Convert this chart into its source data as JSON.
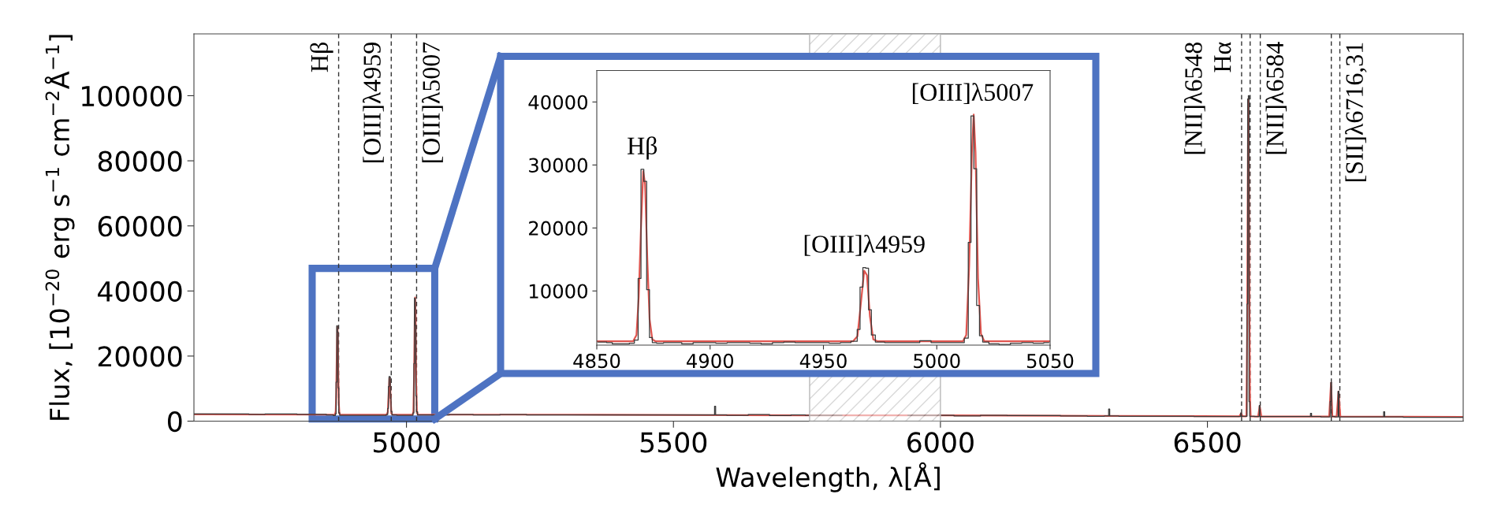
{
  "chart_data": [
    {
      "type": "line",
      "xlabel": "Wavelength, λ[Å]",
      "ylabel": "Flux, [10$^{−20}$ erg s$^{−1}$ cm$^{−2}$Å$^{−1}$]",
      "xlim": [
        4602,
        6979
      ],
      "ylim": [
        0,
        119000
      ],
      "xticks": [
        5000,
        5500,
        6000,
        6500
      ],
      "yticks": [
        0,
        20000,
        40000,
        60000,
        80000,
        100000
      ],
      "series": [
        {
          "type": "step",
          "color": "#3a3a3a",
          "x": [
            4602,
            4630,
            4660,
            4690,
            4720,
            4750,
            4780,
            4810,
            4840,
            4860,
            4866,
            4867.6,
            4868.9,
            4870.1,
            4871.4,
            4872.6,
            4873.9,
            4876,
            4900,
            4930,
            4960,
            4964.3,
            4965.5,
            4966.8,
            4968.0,
            4969.3,
            4970.5,
            4971.8,
            4974,
            4990,
            5011,
            5013.3,
            5014.5,
            5015.7,
            5017.0,
            5018.2,
            5019.5,
            5022,
            5060,
            5100,
            5150,
            5200,
            5250,
            5300,
            5350,
            5400,
            5450,
            5500,
            5550,
            5576,
            5578,
            5580,
            5620,
            5660,
            5700,
            5740,
            5754,
            5877,
            6001,
            6050,
            6100,
            6150,
            6200,
            6250,
            6300,
            6314,
            6316,
            6318,
            6350,
            6400,
            6450,
            6500,
            6540,
            6561.5,
            6563,
            6564.5,
            6573.5,
            6574.8,
            6576.0,
            6577.3,
            6578.5,
            6579.8,
            6596.5,
            6597.8,
            6599,
            6650,
            6692,
            6694,
            6696,
            6729,
            6730.5,
            6731.8,
            6733,
            6744,
            6745.5,
            6747,
            6790,
            6829,
            6831,
            6833,
            6900,
            6979
          ],
          "values": [
            2200,
            2200,
            2200,
            2200,
            2100,
            2200,
            2200,
            2100,
            2100,
            1900,
            1700,
            2200,
            12000,
            29300,
            27400,
            10200,
            2600,
            1800,
            1800,
            1800,
            1800,
            2000,
            3900,
            10600,
            13700,
            13600,
            7000,
            3000,
            1900,
            1800,
            1800,
            2500,
            17700,
            37800,
            29400,
            7700,
            2900,
            1900,
            1900,
            2000,
            1900,
            2000,
            1900,
            1900,
            1900,
            1900,
            1900,
            1900,
            1900,
            1900,
            4600,
            1900,
            1800,
            2000,
            1700,
            1900,
            1800,
            null,
            1800,
            1600,
            1800,
            1700,
            1700,
            1600,
            1500,
            1600,
            3700,
            1600,
            1500,
            1500,
            1500,
            1400,
            1400,
            1400,
            2500,
            1500,
            1500,
            36000,
            99000,
            100000,
            6000,
            1500,
            1400,
            4800,
            1400,
            1400,
            1400,
            2400,
            1400,
            1300,
            6000,
            11900,
            1400,
            1300,
            9200,
            1300,
            1300,
            1300,
            2900,
            1300,
            1200,
            1200
          ]
        },
        {
          "type": "line",
          "color": "#e0554f",
          "x": [
            4602,
            4860,
            4866,
            4867.5,
            4868.5,
            4869.5,
            4870.5,
            4871.3,
            4872.3,
            4873.3,
            4874.5,
            4876,
            4963,
            4965,
            4966.5,
            4968,
            4969.2,
            4970.5,
            4972,
            4974,
            5011.5,
            5013,
            5014.3,
            5015.5,
            5016.3,
            5017.1,
            5018.2,
            5019.5,
            5021,
            5300,
            5750,
            6000,
            6300,
            6560,
            6563,
            6566,
            6573,
            6574.5,
            6576,
            6577,
            6578,
            6579.5,
            6581,
            6595,
            6598,
            6601,
            6728,
            6731.5,
            6734,
            6742,
            6745.5,
            6749,
            6979
          ],
          "values": [
            2100,
            2000,
            2000,
            3000,
            9000,
            20000,
            29000,
            27000,
            15000,
            5500,
            2300,
            2000,
            2000,
            2800,
            8000,
            13200,
            12500,
            6000,
            2300,
            2000,
            2000,
            3000,
            14000,
            32000,
            38000,
            32000,
            12000,
            3200,
            2000,
            2000,
            1800,
            1800,
            1600,
            1500,
            2400,
            1500,
            1500,
            30000,
            90000,
            99000,
            60000,
            8000,
            1500,
            1400,
            4700,
            1400,
            1400,
            11800,
            1400,
            1400,
            9100,
            1400,
            1300
          ]
        }
      ],
      "ref_lines": [
        {
          "axis": "x",
          "value": 4873,
          "label": "Hβ",
          "color": "#333333",
          "line_style": "dashed"
        },
        {
          "axis": "x",
          "value": 4971.5,
          "label": "[OIII]λ4959",
          "color": "#333333",
          "line_style": "dashed"
        },
        {
          "axis": "x",
          "value": 5019,
          "label": "[OIII]λ5007",
          "color": "#333333",
          "line_style": "dashed"
        },
        {
          "axis": "x",
          "value": 6564,
          "label": "[NII]λ6548",
          "color": "#333333",
          "line_style": "dashed"
        },
        {
          "axis": "x",
          "value": 6580,
          "label": "Hα",
          "color": "#333333",
          "line_style": "dashed"
        },
        {
          "axis": "x",
          "value": 6599,
          "label": "[NII]λ6584",
          "color": "#333333",
          "line_style": "dashed"
        },
        {
          "axis": "x",
          "value": 6732,
          "label": null,
          "color": "#333333",
          "line_style": "dashed"
        },
        {
          "axis": "x",
          "value": 6748,
          "label": "[SII]λ6716,31",
          "color": "#333333",
          "line_style": "dashed"
        }
      ],
      "bands": [
        {
          "axis": "x",
          "from": 5755,
          "to": 6000,
          "color": "#b8b8b8"
        }
      ]
    },
    {
      "type": "line",
      "xlim": [
        4850,
        5050
      ],
      "ylim": [
        1400,
        45000
      ],
      "xticks": [
        4850,
        4900,
        4950,
        5000,
        5050
      ],
      "yticks": [
        10000,
        20000,
        30000,
        40000
      ],
      "series": [
        {
          "type": "step",
          "color": "#3a3a3a",
          "x": [
            4850.6,
            4853.1,
            4855.6,
            4858.1,
            4860.6,
            4863.1,
            4865.6,
            4867.6,
            4868.9,
            4870.1,
            4871.4,
            4872.6,
            4873.9,
            4875.1,
            4877.6,
            4881.3,
            4885,
            4890,
            4895,
            4900,
            4905,
            4910,
            4915,
            4920,
            4925,
            4930,
            4935,
            4940,
            4945,
            4950,
            4955,
            4960,
            4964.3,
            4965.5,
            4966.8,
            4968.0,
            4969.3,
            4970.5,
            4971.8,
            4974,
            4980,
            4985,
            4990,
            4995,
            5000,
            5005,
            5011,
            5013.3,
            5014.5,
            5015.7,
            5017.0,
            5018.2,
            5019.5,
            5021,
            5025,
            5030,
            5035,
            5040,
            5045,
            5049.4
          ],
          "values": [
            1900,
            1900,
            1800,
            1600,
            1600,
            1600,
            1700,
            2200,
            12000,
            29300,
            27400,
            10200,
            2600,
            1800,
            1700,
            1800,
            1800,
            1600,
            1800,
            1800,
            1700,
            1800,
            1800,
            1700,
            1600,
            1800,
            1900,
            1800,
            1800,
            1800,
            1700,
            1800,
            2000,
            3900,
            10600,
            13700,
            13600,
            7000,
            3000,
            1900,
            1800,
            1800,
            1800,
            2100,
            1800,
            1800,
            1800,
            2500,
            17700,
            37800,
            29400,
            7700,
            2900,
            1900,
            1600,
            1500,
            1700,
            1800,
            1700,
            1800
          ]
        },
        {
          "type": "line",
          "color": "#e0554f",
          "x": [
            4850,
            4866,
            4867.5,
            4868.5,
            4869.5,
            4870.5,
            4871.3,
            4872.3,
            4873.3,
            4874.5,
            4876,
            4963,
            4965,
            4966.5,
            4968,
            4969.2,
            4970.5,
            4972,
            4974,
            5011.5,
            5013,
            5014.3,
            5015.5,
            5016.3,
            5017.1,
            5018.2,
            5019.5,
            5021,
            5050
          ],
          "values": [
            2000,
            2000,
            3000,
            9000,
            20000,
            29000,
            27000,
            15000,
            5500,
            2300,
            2000,
            2000,
            2800,
            8000,
            13200,
            12500,
            6000,
            2300,
            2000,
            2000,
            3000,
            14000,
            32000,
            38000,
            32000,
            12000,
            3200,
            2000,
            2000
          ]
        }
      ],
      "annotations": [
        {
          "text": "Hβ",
          "x": 4870.1,
          "y": 29300
        },
        {
          "text": "[OIII]λ4959",
          "x": 4968.0,
          "y": 13700
        },
        {
          "text": "[OIII]λ5007",
          "x": 5015.7,
          "y": 37800
        }
      ]
    }
  ]
}
